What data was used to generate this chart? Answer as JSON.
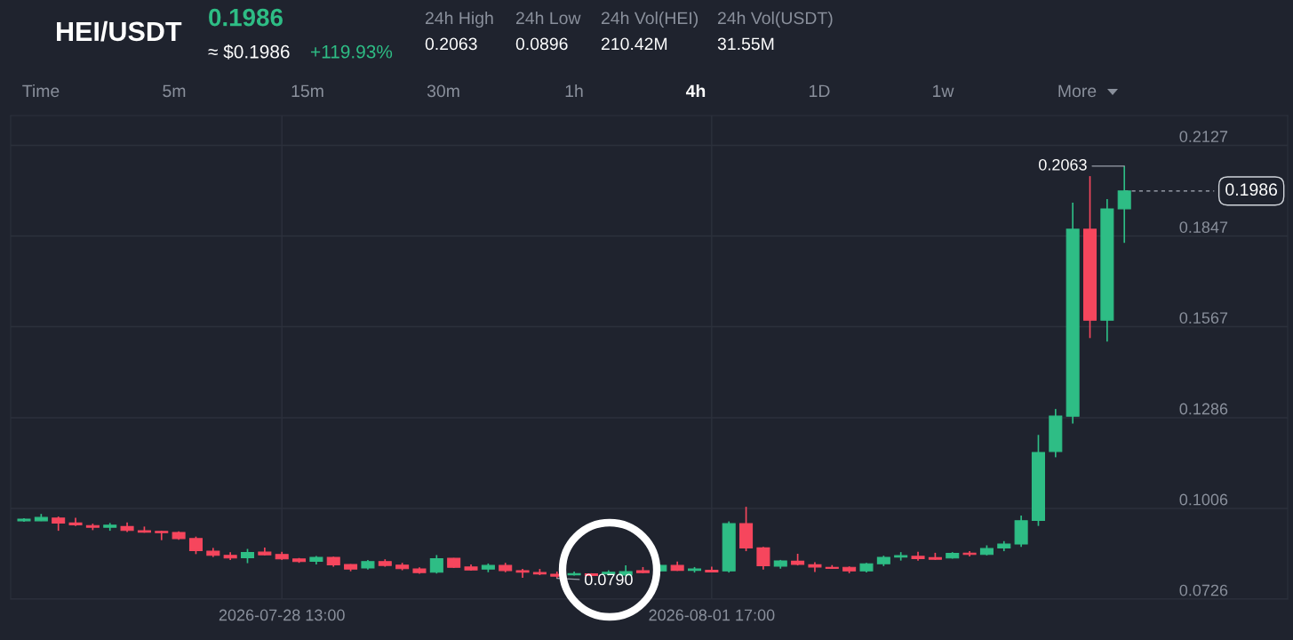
{
  "chart_data": {
    "type": "candlestick",
    "title": "HEI/USDT",
    "annotations": [
      "0.1986",
      "≈ $0.1986",
      "+119.93%",
      "24h High",
      "0.2063",
      "24h Low",
      "0.0896",
      "24h Vol(HEI)",
      "210.42M",
      "24h Vol(USDT)",
      "31.55M",
      "Time",
      "5m",
      "15m",
      "30m",
      "1h",
      "4h",
      "1D",
      "1w",
      "More",
      {
        "text": "0.2063",
        "x": "2026-08-05T17:00",
        "y": 0.2063
      },
      {
        "text": "0.0790",
        "x": "2026-07-31T05:00",
        "y": 0.079
      }
    ],
    "x": [
      "2026-07-26T01:00",
      "2026-07-26T05:00",
      "2026-07-26T09:00",
      "2026-07-26T13:00",
      "2026-07-26T17:00",
      "2026-07-26T21:00",
      "2026-07-27T01:00",
      "2026-07-27T05:00",
      "2026-07-27T09:00",
      "2026-07-27T13:00",
      "2026-07-27T17:00",
      "2026-07-27T21:00",
      "2026-07-28T01:00",
      "2026-07-28T05:00",
      "2026-07-28T09:00",
      "2026-07-28T13:00",
      "2026-07-28T17:00",
      "2026-07-28T21:00",
      "2026-07-29T01:00",
      "2026-07-29T05:00",
      "2026-07-29T09:00",
      "2026-07-29T13:00",
      "2026-07-29T17:00",
      "2026-07-29T21:00",
      "2026-07-30T01:00",
      "2026-07-30T05:00",
      "2026-07-30T09:00",
      "2026-07-30T13:00",
      "2026-07-30T17:00",
      "2026-07-30T21:00",
      "2026-07-31T01:00",
      "2026-07-31T05:00",
      "2026-07-31T09:00",
      "2026-07-31T13:00",
      "2026-07-31T17:00",
      "2026-07-31T21:00",
      "2026-08-01T01:00",
      "2026-08-01T05:00",
      "2026-08-01T09:00",
      "2026-08-01T13:00",
      "2026-08-01T17:00",
      "2026-08-01T21:00",
      "2026-08-02T01:00",
      "2026-08-02T05:00",
      "2026-08-02T09:00",
      "2026-08-02T13:00",
      "2026-08-02T17:00",
      "2026-08-02T21:00",
      "2026-08-03T01:00",
      "2026-08-03T05:00",
      "2026-08-03T09:00",
      "2026-08-03T13:00",
      "2026-08-03T17:00",
      "2026-08-03T21:00",
      "2026-08-04T01:00",
      "2026-08-04T05:00",
      "2026-08-04T09:00",
      "2026-08-04T13:00",
      "2026-08-04T17:00",
      "2026-08-04T21:00",
      "2026-08-05T01:00",
      "2026-08-05T05:00",
      "2026-08-05T09:00",
      "2026-08-05T13:00",
      "2026-08-05T17:00"
    ],
    "ohlc": [
      [
        0.0968,
        0.0976,
        0.0965,
        0.0973
      ],
      [
        0.0968,
        0.0989,
        0.0967,
        0.0978
      ],
      [
        0.0976,
        0.0981,
        0.0937,
        0.0961
      ],
      [
        0.0961,
        0.0977,
        0.0952,
        0.0955
      ],
      [
        0.0953,
        0.0959,
        0.0939,
        0.0948
      ],
      [
        0.0948,
        0.0961,
        0.0937,
        0.0954
      ],
      [
        0.095,
        0.0963,
        0.0933,
        0.0938
      ],
      [
        0.0937,
        0.095,
        0.0931,
        0.0933
      ],
      [
        0.0935,
        0.0937,
        0.0908,
        0.0931
      ],
      [
        0.0932,
        0.0935,
        0.0909,
        0.0913
      ],
      [
        0.0913,
        0.0919,
        0.0865,
        0.0876
      ],
      [
        0.0874,
        0.0884,
        0.0856,
        0.0861
      ],
      [
        0.0861,
        0.0871,
        0.0847,
        0.0853
      ],
      [
        0.0854,
        0.0881,
        0.0837,
        0.087
      ],
      [
        0.0871,
        0.0885,
        0.0861,
        0.0863
      ],
      [
        0.0864,
        0.0872,
        0.0847,
        0.085
      ],
      [
        0.085,
        0.0853,
        0.0838,
        0.0842
      ],
      [
        0.0843,
        0.0859,
        0.0833,
        0.0855
      ],
      [
        0.0855,
        0.0857,
        0.0826,
        0.0832
      ],
      [
        0.0833,
        0.0834,
        0.0812,
        0.0819
      ],
      [
        0.0822,
        0.0847,
        0.0817,
        0.0842
      ],
      [
        0.0842,
        0.0849,
        0.0826,
        0.083
      ],
      [
        0.0831,
        0.0838,
        0.0815,
        0.082
      ],
      [
        0.0819,
        0.0824,
        0.0804,
        0.0808
      ],
      [
        0.0809,
        0.0862,
        0.0805,
        0.0851
      ],
      [
        0.0852,
        0.0853,
        0.0822,
        0.0824
      ],
      [
        0.0825,
        0.0833,
        0.0814,
        0.0816
      ],
      [
        0.0819,
        0.0836,
        0.0809,
        0.083
      ],
      [
        0.083,
        0.0838,
        0.0809,
        0.0814
      ],
      [
        0.0814,
        0.0819,
        0.0792,
        0.0809
      ],
      [
        0.0808,
        0.0819,
        0.08,
        0.0804
      ],
      [
        0.0803,
        0.0811,
        0.079,
        0.0797
      ],
      [
        0.0801,
        0.0811,
        0.0799,
        0.0805
      ],
      [
        0.0804,
        0.0806,
        0.0797,
        0.0799
      ],
      [
        0.0804,
        0.0815,
        0.0799,
        0.0809
      ],
      [
        0.08,
        0.083,
        0.0799,
        0.0811
      ],
      [
        0.0814,
        0.0825,
        0.0806,
        0.0808
      ],
      [
        0.0813,
        0.0832,
        0.0811,
        0.083
      ],
      [
        0.083,
        0.0842,
        0.0813,
        0.0815
      ],
      [
        0.0815,
        0.0825,
        0.0808,
        0.0819
      ],
      [
        0.0815,
        0.0826,
        0.0808,
        0.081
      ],
      [
        0.0813,
        0.0966,
        0.0808,
        0.0959
      ],
      [
        0.0959,
        0.1011,
        0.0874,
        0.0884
      ],
      [
        0.0884,
        0.0887,
        0.0817,
        0.0829
      ],
      [
        0.0828,
        0.0847,
        0.082,
        0.0844
      ],
      [
        0.0843,
        0.0866,
        0.083,
        0.0833
      ],
      [
        0.0832,
        0.084,
        0.081,
        0.0825
      ],
      [
        0.0824,
        0.0831,
        0.082,
        0.0821
      ],
      [
        0.0824,
        0.0827,
        0.0806,
        0.0813
      ],
      [
        0.0813,
        0.0838,
        0.0808,
        0.0835
      ],
      [
        0.0835,
        0.086,
        0.0828,
        0.0855
      ],
      [
        0.0856,
        0.0871,
        0.0845,
        0.086
      ],
      [
        0.0858,
        0.0872,
        0.0845,
        0.0851
      ],
      [
        0.0854,
        0.0869,
        0.0847,
        0.0849
      ],
      [
        0.0853,
        0.0871,
        0.0851,
        0.0867
      ],
      [
        0.0868,
        0.0874,
        0.0858,
        0.0864
      ],
      [
        0.0864,
        0.0892,
        0.0861,
        0.0882
      ],
      [
        0.0884,
        0.0905,
        0.0874,
        0.0896
      ],
      [
        0.0896,
        0.0984,
        0.0887,
        0.0968
      ],
      [
        0.0969,
        0.1233,
        0.0952,
        0.1179
      ],
      [
        0.1182,
        0.1313,
        0.1164,
        0.1291
      ],
      [
        0.1291,
        0.195,
        0.1268,
        0.1868
      ],
      [
        0.1868,
        0.2032,
        0.1532,
        0.1587
      ],
      [
        0.1587,
        0.1961,
        0.1521,
        0.1931
      ],
      [
        0.1931,
        0.2063,
        0.1826,
        0.1986
      ]
    ],
    "colors": [
      "#2ebd85",
      "#2ebd85",
      "#f6465d",
      "#f6465d",
      "#f6465d",
      "#2ebd85",
      "#f6465d",
      "#f6465d",
      "#f6465d",
      "#f6465d",
      "#f6465d",
      "#f6465d",
      "#f6465d",
      "#2ebd85",
      "#f6465d",
      "#f6465d",
      "#f6465d",
      "#2ebd85",
      "#f6465d",
      "#f6465d",
      "#2ebd85",
      "#f6465d",
      "#f6465d",
      "#f6465d",
      "#2ebd85",
      "#f6465d",
      "#f6465d",
      "#2ebd85",
      "#f6465d",
      "#f6465d",
      "#f6465d",
      "#f6465d",
      "#2ebd85",
      "#f6465d",
      "#2ebd85",
      "#2ebd85",
      "#f6465d",
      "#2ebd85",
      "#f6465d",
      "#2ebd85",
      "#f6465d",
      "#2ebd85",
      "#f6465d",
      "#f6465d",
      "#2ebd85",
      "#f6465d",
      "#f6465d",
      "#f6465d",
      "#f6465d",
      "#2ebd85",
      "#2ebd85",
      "#2ebd85",
      "#f6465d",
      "#f6465d",
      "#2ebd85",
      "#f6465d",
      "#2ebd85",
      "#2ebd85",
      "#2ebd85",
      "#2ebd85",
      "#2ebd85",
      "#2ebd85",
      "#f6465d",
      "#2ebd85",
      "#2ebd85"
    ],
    "xlim": [
      "2026-07-25T21:54",
      "2026-08-07T07:00"
    ],
    "xticks": [
      {
        "value": "2026-07-28T13:00",
        "label": "2026-07-28 13:00"
      },
      {
        "value": "2026-08-01T17:00",
        "label": "2026-08-01 17:00"
      }
    ],
    "ylim": [
      0.0726,
      0.2219
    ],
    "yticks": [
      0.0726,
      0.1006,
      0.1286,
      0.1567,
      0.1847,
      0.2127
    ],
    "grid": true,
    "ref_lines": [
      {
        "axis": "y",
        "value": 0.1986,
        "label": "0.1986",
        "line_style": "dashed",
        "color": "#aab0bb"
      }
    ]
  }
}
